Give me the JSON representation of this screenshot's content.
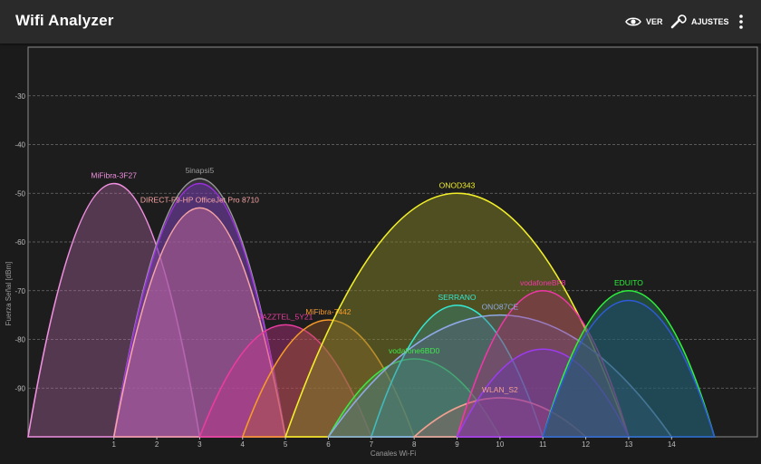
{
  "app": {
    "title": "Wifi Analyzer",
    "actions": {
      "view_label": "VER",
      "view_icon": "eye-icon",
      "settings_label": "AJUSTES",
      "settings_icon": "wrench-icon",
      "menu_icon": "more-vert-icon"
    }
  },
  "chart_data": {
    "type": "area",
    "xlabel": "Canales Wi-Fi",
    "ylabel": "Fuerza Señal [dBm]",
    "xlim": [
      -1,
      16
    ],
    "ylim": [
      -100,
      -20
    ],
    "x_ticks": [
      1,
      2,
      3,
      4,
      5,
      6,
      7,
      8,
      9,
      10,
      11,
      12,
      13,
      14
    ],
    "y_ticks": [
      -30,
      -40,
      -50,
      -60,
      -70,
      -80,
      -90
    ],
    "grid": true,
    "background": "#1b1b1b",
    "series": [
      {
        "name": "MiFibra-3F27",
        "channel": 1,
        "signal": -48,
        "width": 2,
        "color": "#f08fe0",
        "fill": "rgba(190,110,175,0.35)"
      },
      {
        "name": "5inapsi5",
        "channel": 3,
        "signal": -47,
        "width": 2,
        "color": "#9a9a9a",
        "fill": "rgba(110,90,120,0.35)"
      },
      {
        "name": "",
        "channel": 3,
        "signal": -48,
        "width": 2,
        "color": "#9c2fe0",
        "fill": "rgba(120,50,190,0.40)"
      },
      {
        "name": "DIRECT-F9-HP OfficeJet Pro 8710",
        "channel": 3,
        "signal": -53,
        "width": 2,
        "color": "#f6a4a4",
        "fill": "rgba(205,110,160,0.45)"
      },
      {
        "name": "JAZZTEL_5Y21",
        "channel": 5,
        "signal": -77,
        "width": 2,
        "color": "#e83c9f",
        "fill": "rgba(200,50,140,0.40)"
      },
      {
        "name": "MiFibra-7442",
        "channel": 6,
        "signal": -76,
        "width": 2,
        "color": "#f59b2a",
        "fill": "rgba(175,95,45,0.35)"
      },
      {
        "name": "ONOD343",
        "channel": 9,
        "signal": -50,
        "width": 4,
        "color": "#f2ef2a",
        "fill": "rgba(130,130,40,0.50)"
      },
      {
        "name": "vodafone6BD0",
        "channel": 8,
        "signal": -84,
        "width": 2,
        "color": "#3fe84a",
        "fill": "rgba(60,160,70,0.40)"
      },
      {
        "name": "SERRANO",
        "channel": 9,
        "signal": -73,
        "width": 2,
        "color": "#35e8d0",
        "fill": "rgba(45,145,140,0.35)"
      },
      {
        "name": "ONO87CE",
        "channel": 10,
        "signal": -75,
        "width": 4,
        "color": "#8fa8e6",
        "fill": "rgba(90,100,150,0.35)"
      },
      {
        "name": "WLAN_S2",
        "channel": 10,
        "signal": -92,
        "width": 2,
        "color": "#f2a090",
        "fill": "rgba(180,100,100,0.30)"
      },
      {
        "name": "vodafoneBF8",
        "channel": 11,
        "signal": -70,
        "width": 2,
        "color": "#f037a6",
        "fill": "rgba(180,40,120,0.35)"
      },
      {
        "name": "",
        "channel": 11,
        "signal": -82,
        "width": 2,
        "color": "#9c3cf0",
        "fill": "rgba(110,50,180,0.40)"
      },
      {
        "name": "EDUITO",
        "channel": 13,
        "signal": -70,
        "width": 2,
        "color": "#2ff03c",
        "fill": "rgba(40,120,80,0.50)"
      },
      {
        "name": "",
        "channel": 13,
        "signal": -72,
        "width": 2,
        "color": "#2f5ad8",
        "fill": "rgba(30,70,140,0.35)"
      }
    ]
  }
}
